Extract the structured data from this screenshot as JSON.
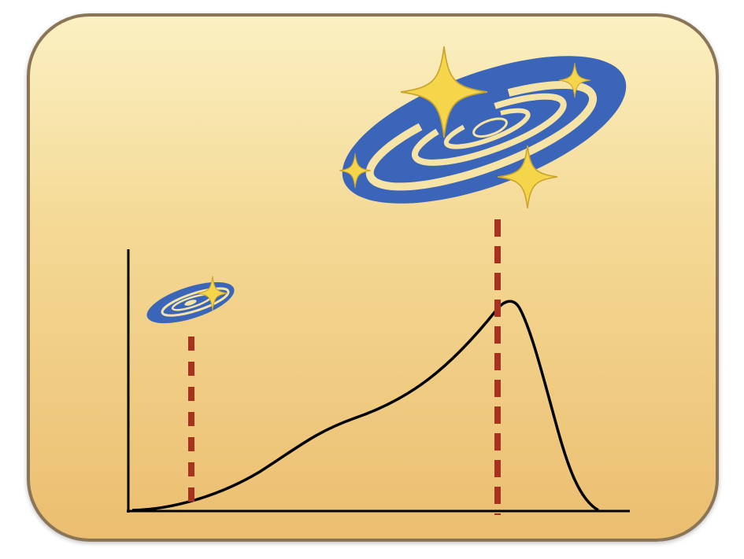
{
  "diagram": {
    "colors": {
      "panel_border": "#8a7657",
      "panel_top": "#fbf0c2",
      "panel_bottom": "#ebbe70",
      "galaxy": "#3b65b8",
      "star": "#f5d64a",
      "star_outline": "#c9a42c",
      "marker": "#a83220",
      "curve": "#000000"
    },
    "icons": [
      "small-galaxy-icon",
      "large-galaxy-icon",
      "sparkle-star-icon"
    ],
    "markers": [
      "small-galaxy-epoch",
      "large-galaxy-epoch"
    ]
  }
}
